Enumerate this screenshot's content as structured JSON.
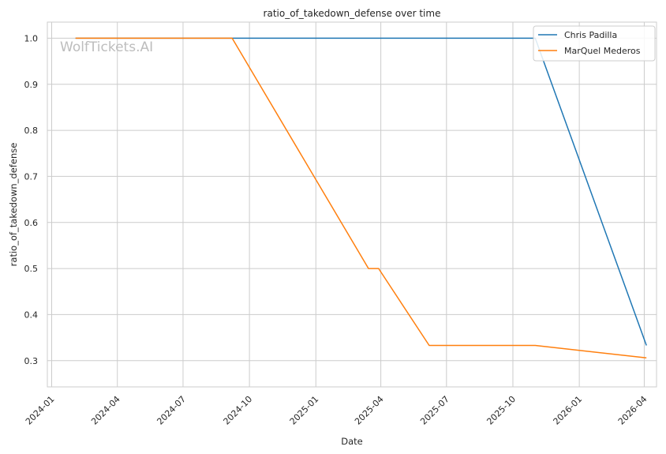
{
  "watermark": "WolfTickets.AI",
  "chart_data": {
    "type": "line",
    "title": "ratio_of_takedown_defense over time",
    "xlabel": "Date",
    "ylabel": "ratio_of_takedown_defense",
    "x_ticks": [
      "2024-01",
      "2024-04",
      "2024-07",
      "2024-10",
      "2025-01",
      "2025-04",
      "2025-07",
      "2025-10",
      "2026-01",
      "2026-04"
    ],
    "y_ticks": [
      1.0,
      0.9,
      0.8,
      0.7,
      0.6,
      0.5,
      0.4,
      0.3
    ],
    "y_tick_labels": [
      "1.0",
      "0.9",
      "0.8",
      "0.7",
      "0.6",
      "0.5",
      "0.4",
      "0.3"
    ],
    "xlim": [
      "2023-12-26",
      "2026-04-18"
    ],
    "ylim": [
      0.243,
      1.035
    ],
    "grid": true,
    "legend_position": "top-right",
    "series": [
      {
        "name": "Chris Padilla",
        "color": "#1f77b4",
        "points": [
          {
            "x": "2024-02-03",
            "y": 1.0
          },
          {
            "x": "2025-11-01",
            "y": 1.0
          },
          {
            "x": "2026-04-04",
            "y": 0.333
          }
        ]
      },
      {
        "name": "MarQuel Mederos",
        "color": "#ff7f0e",
        "points": [
          {
            "x": "2024-02-03",
            "y": 1.0
          },
          {
            "x": "2024-09-07",
            "y": 1.0
          },
          {
            "x": "2025-03-15",
            "y": 0.5
          },
          {
            "x": "2025-03-29",
            "y": 0.5
          },
          {
            "x": "2025-06-07",
            "y": 0.333
          },
          {
            "x": "2025-11-01",
            "y": 0.333
          },
          {
            "x": "2026-04-04",
            "y": 0.306
          }
        ]
      }
    ]
  }
}
